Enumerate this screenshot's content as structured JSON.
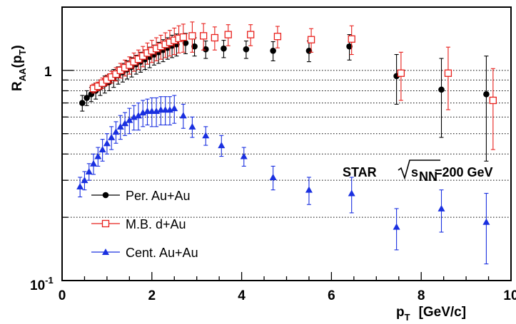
{
  "chart_data": {
    "type": "scatter",
    "xlim": [
      0,
      10
    ],
    "ylim": [
      0.1,
      2.0
    ],
    "y_scale": "log",
    "x_ticks": [
      "0",
      "2",
      "4",
      "6",
      "8",
      "10"
    ],
    "y_tick_labels": {
      "one": "1",
      "tenth_base": "10",
      "tenth_exp": "-1"
    },
    "xlabel": {
      "main": "p",
      "sub": "T",
      "units": "[GeV/c]"
    },
    "ylabel": {
      "main": "R",
      "sub": "AA",
      "arg_open": "(p",
      "arg_sub": "T",
      "arg_close": ")"
    },
    "reference_lines_y": [
      1.0,
      0.9,
      0.8,
      0.7,
      0.6,
      0.5,
      0.4,
      0.3,
      0.2
    ],
    "annotation": {
      "star": "STAR",
      "sqrt_s": "s",
      "nn": "NN",
      "energy": "=200 GeV"
    },
    "legend_placement": "bottom-left",
    "series": [
      {
        "name": "Per. Au+Au",
        "color": "#000000",
        "marker": "filled-circle",
        "x": [
          0.45,
          0.55,
          0.65,
          0.75,
          0.85,
          0.95,
          1.05,
          1.15,
          1.25,
          1.35,
          1.45,
          1.55,
          1.65,
          1.75,
          1.85,
          1.95,
          2.05,
          2.15,
          2.25,
          2.35,
          2.45,
          2.55,
          2.75,
          2.95,
          3.2,
          3.6,
          4.1,
          4.7,
          5.5,
          6.4,
          7.45,
          8.45,
          9.45
        ],
        "y": [
          0.7,
          0.74,
          0.77,
          0.8,
          0.83,
          0.86,
          0.88,
          0.92,
          0.95,
          0.98,
          1.01,
          1.04,
          1.07,
          1.1,
          1.13,
          1.16,
          1.19,
          1.22,
          1.25,
          1.28,
          1.31,
          1.33,
          1.35,
          1.3,
          1.26,
          1.27,
          1.26,
          1.24,
          1.24,
          1.3,
          0.94,
          0.81,
          0.77
        ],
        "err": [
          0.06,
          0.06,
          0.06,
          0.07,
          0.07,
          0.08,
          0.08,
          0.09,
          0.09,
          0.1,
          0.1,
          0.11,
          0.11,
          0.12,
          0.12,
          0.13,
          0.13,
          0.14,
          0.15,
          0.15,
          0.16,
          0.16,
          0.15,
          0.13,
          0.12,
          0.12,
          0.12,
          0.13,
          0.14,
          0.18,
          0.25,
          0.33,
          0.4
        ]
      },
      {
        "name": "M.B. d+Au",
        "color": "#e8201c",
        "marker": "open-square",
        "x": [
          0.7,
          0.8,
          0.9,
          1.0,
          1.1,
          1.2,
          1.3,
          1.4,
          1.5,
          1.6,
          1.7,
          1.8,
          1.9,
          2.0,
          2.1,
          2.2,
          2.3,
          2.4,
          2.5,
          2.6,
          2.7,
          2.9,
          3.15,
          3.4,
          3.7,
          4.2,
          4.8,
          5.55,
          6.45,
          7.55,
          8.6,
          9.6
        ],
        "y": [
          0.82,
          0.84,
          0.87,
          0.9,
          0.93,
          0.96,
          1.0,
          1.03,
          1.06,
          1.1,
          1.13,
          1.17,
          1.21,
          1.24,
          1.27,
          1.3,
          1.33,
          1.36,
          1.39,
          1.42,
          1.44,
          1.46,
          1.46,
          1.43,
          1.48,
          1.48,
          1.45,
          1.4,
          1.41,
          0.97,
          0.97,
          0.72
        ],
        "err": [
          0.04,
          0.04,
          0.05,
          0.05,
          0.06,
          0.07,
          0.08,
          0.09,
          0.1,
          0.11,
          0.12,
          0.13,
          0.14,
          0.15,
          0.16,
          0.17,
          0.18,
          0.19,
          0.2,
          0.21,
          0.22,
          0.24,
          0.21,
          0.18,
          0.17,
          0.17,
          0.17,
          0.18,
          0.22,
          0.25,
          0.32,
          0.3
        ]
      },
      {
        "name": "Cent. Au+Au",
        "color": "#1a30e0",
        "marker": "filled-triangle",
        "x": [
          0.4,
          0.5,
          0.6,
          0.7,
          0.8,
          0.9,
          1.0,
          1.1,
          1.2,
          1.3,
          1.4,
          1.5,
          1.6,
          1.7,
          1.8,
          1.9,
          2.0,
          2.1,
          2.2,
          2.3,
          2.4,
          2.5,
          2.7,
          2.9,
          3.2,
          3.55,
          4.05,
          4.7,
          5.5,
          6.45,
          7.45,
          8.45,
          9.45
        ],
        "y": [
          0.28,
          0.3,
          0.33,
          0.36,
          0.39,
          0.42,
          0.45,
          0.48,
          0.51,
          0.54,
          0.56,
          0.58,
          0.6,
          0.61,
          0.63,
          0.64,
          0.64,
          0.64,
          0.65,
          0.65,
          0.65,
          0.66,
          0.61,
          0.54,
          0.49,
          0.44,
          0.39,
          0.31,
          0.27,
          0.26,
          0.18,
          0.22,
          0.19
        ],
        "err": [
          0.03,
          0.03,
          0.03,
          0.04,
          0.04,
          0.05,
          0.05,
          0.06,
          0.06,
          0.07,
          0.07,
          0.08,
          0.08,
          0.09,
          0.09,
          0.09,
          0.1,
          0.1,
          0.1,
          0.1,
          0.1,
          0.1,
          0.08,
          0.06,
          0.05,
          0.05,
          0.04,
          0.04,
          0.04,
          0.05,
          0.04,
          0.05,
          0.07
        ]
      }
    ]
  }
}
